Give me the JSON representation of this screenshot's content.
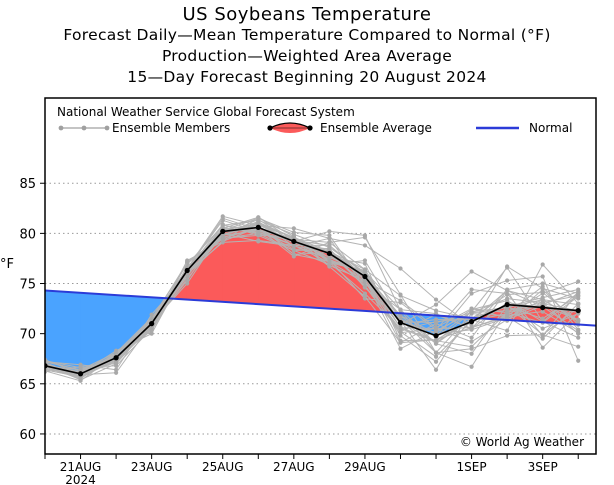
{
  "titles": {
    "line1": "US Soybeans Temperature",
    "line2": "Forecast Daily—Mean Temperature Compared to Normal (°F)",
    "line3": "Production—Weighted Area Average",
    "line4": "15—Day Forecast Beginning 20 August 2024"
  },
  "chart_data": {
    "type": "line",
    "title": "US Soybeans Temperature",
    "subtitle": "Forecast Daily-Mean Temperature Compared to Normal (°F) / Production-Weighted Area Average / 15-Day Forecast Beginning 20 August 2024",
    "ylabel": "°F",
    "xlabel": "",
    "ylim": [
      58,
      93.5
    ],
    "x_range": [
      0,
      15.5
    ],
    "yticks": [
      60,
      65,
      70,
      75,
      80,
      85
    ],
    "xticks": [
      {
        "x": 1,
        "label": "21AUG",
        "sublabel": "2024"
      },
      {
        "x": 3,
        "label": "23AUG"
      },
      {
        "x": 5,
        "label": "25AUG"
      },
      {
        "x": 7,
        "label": "27AUG"
      },
      {
        "x": 9,
        "label": "29AUG"
      },
      {
        "x": 12,
        "label": "1SEP"
      },
      {
        "x": 14,
        "label": "3SEP"
      }
    ],
    "grid": "horizontal dotted",
    "legend_header": "National Weather Service Global Forecast System",
    "legend": {
      "members": "Ensemble Members",
      "average": "Ensemble Average",
      "normal": "Normal"
    },
    "annotation": "© World Ag Weather",
    "x": [
      0,
      1,
      2,
      3,
      4,
      5,
      6,
      7,
      8,
      9,
      10,
      11,
      12,
      13,
      14,
      15
    ],
    "ensemble_average": [
      66.8,
      66.0,
      67.6,
      71.0,
      76.3,
      80.2,
      80.6,
      79.2,
      78.0,
      75.7,
      71.1,
      69.8,
      71.2,
      72.9,
      72.6,
      72.3
    ],
    "normal": {
      "x": [
        0,
        15.5
      ],
      "values": [
        74.3,
        70.8
      ]
    },
    "ensemble_members": [
      [
        66.9,
        66.2,
        67.9,
        71.5,
        76.9,
        80.8,
        81.3,
        79.9,
        78.6,
        76.1,
        70.6,
        70.5,
        69.2,
        71.4,
        72.8,
        71.4
      ],
      [
        66.4,
        65.7,
        67.3,
        70.7,
        75.5,
        79.8,
        81.4,
        79.1,
        78.2,
        75.7,
        69.8,
        67.2,
        71.5,
        71.3,
        74.4,
        70.9
      ],
      [
        66.7,
        65.7,
        67.6,
        70.3,
        76.2,
        80.1,
        80.8,
        77.9,
        77.2,
        75.0,
        72.4,
        72.0,
        70.5,
        73.1,
        72.6,
        72.3
      ],
      [
        66.8,
        66.1,
        67.5,
        71.1,
        76.1,
        79.1,
        79.3,
        78.8,
        77.4,
        73.5,
        73.1,
        70.4,
        74.4,
        74.0,
        69.8,
        74.1
      ],
      [
        67.3,
        66.3,
        67.5,
        71.0,
        76.1,
        79.6,
        80.5,
        77.7,
        79.1,
        79.6,
        73.9,
        68.1,
        68.5,
        69.8,
        69.9,
        72.6
      ],
      [
        66.7,
        66.1,
        67.1,
        71.1,
        75.0,
        80.3,
        81.5,
        80.1,
        79.8,
        74.8,
        70.1,
        70.5,
        70.6,
        71.7,
        69.5,
        73.0
      ],
      [
        67.0,
        65.8,
        68.1,
        70.7,
        76.3,
        80.1,
        80.8,
        79.6,
        76.8,
        75.3,
        73.3,
        70.6,
        72.5,
        72.1,
        72.8,
        72.1
      ],
      [
        66.7,
        65.9,
        67.9,
        71.4,
        76.5,
        81.3,
        80.2,
        79.6,
        77.3,
        76.1,
        71.5,
        69.7,
        74.0,
        75.3,
        75.7,
        67.3
      ],
      [
        67.3,
        66.6,
        66.8,
        70.5,
        77.3,
        79.2,
        80.6,
        79.3,
        78.0,
        75.7,
        69.1,
        71.0,
        69.6,
        74.3,
        73.4,
        71.3
      ],
      [
        66.8,
        66.4,
        67.6,
        70.4,
        76.5,
        80.4,
        80.3,
        78.8,
        77.1,
        74.0,
        70.5,
        69.2,
        72.2,
        76.6,
        71.2,
        74.1
      ],
      [
        66.8,
        66.1,
        67.1,
        71.5,
        77.0,
        79.8,
        81.1,
        79.6,
        78.2,
        76.4,
        73.8,
        72.3,
        71.5,
        72.7,
        73.6,
        74.4
      ],
      [
        66.3,
        65.3,
        67.9,
        71.3,
        76.5,
        81.5,
        80.4,
        79.3,
        78.8,
        75.9,
        71.8,
        69.0,
        68.0,
        72.8,
        69.9,
        68.7
      ],
      [
        66.7,
        65.5,
        67.9,
        70.8,
        76.4,
        80.0,
        79.2,
        78.7,
        79.5,
        74.6,
        71.3,
        66.4,
        72.5,
        71.6,
        73.4,
        72.9
      ],
      [
        66.4,
        65.7,
        68.1,
        71.6,
        76.3,
        80.9,
        79.8,
        79.7,
        77.2,
        76.3,
        71.0,
        71.4,
        71.4,
        70.3,
        76.9,
        73.0
      ],
      [
        66.8,
        65.8,
        67.8,
        71.2,
        75.9,
        79.2,
        81.6,
        79.3,
        76.7,
        73.7,
        69.1,
        69.4,
        71.3,
        74.3,
        72.7,
        70.3
      ],
      [
        67.1,
        65.8,
        67.3,
        71.4,
        76.4,
        80.5,
        80.1,
        79.2,
        77.6,
        77.0,
        69.3,
        69.4,
        70.6,
        71.8,
        72.2,
        70.1
      ],
      [
        66.8,
        65.7,
        68.0,
        71.0,
        75.8,
        79.9,
        80.9,
        79.2,
        80.2,
        79.8,
        72.3,
        68.1,
        66.7,
        72.3,
        72.9,
        74.2
      ],
      [
        67.2,
        66.4,
        68.1,
        71.0,
        75.3,
        80.6,
        80.0,
        79.4,
        79.1,
        76.4,
        70.9,
        72.9,
        76.2,
        74.3,
        68.6,
        72.1
      ],
      [
        67.1,
        65.7,
        67.4,
        71.4,
        77.1,
        79.6,
        80.4,
        78.4,
        78.5,
        74.6,
        71.4,
        68.1,
        72.0,
        71.8,
        74.0,
        75.2
      ],
      [
        67.2,
        66.4,
        67.2,
        70.6,
        76.3,
        79.8,
        80.3,
        79.5,
        77.4,
        76.1,
        71.2,
        71.1,
        72.1,
        73.5,
        73.1,
        73.8
      ],
      [
        66.5,
        65.9,
        67.4,
        70.5,
        76.7,
        79.8,
        80.9,
        79.0,
        78.4,
        75.4,
        68.5,
        70.3,
        72.1,
        72.3,
        73.1,
        70.0
      ],
      [
        66.7,
        65.6,
        67.9,
        71.3,
        76.3,
        80.1,
        80.8,
        77.9,
        78.1,
        75.6,
        70.6,
        69.3,
        68.7,
        72.1,
        71.1,
        73.7
      ],
      [
        66.6,
        66.2,
        67.2,
        70.6,
        77.1,
        79.8,
        81.2,
        78.7,
        78.3,
        75.8,
        71.8,
        70.0,
        70.4,
        71.6,
        73.0,
        72.3
      ],
      [
        67.0,
        66.0,
        67.8,
        71.2,
        76.6,
        80.3,
        81.0,
        79.6,
        77.9,
        75.1,
        70.4,
        71.2,
        71.5,
        73.9,
        74.1,
        71.3
      ],
      [
        66.9,
        65.4,
        67.0,
        70.9,
        75.7,
        80.4,
        80.1,
        78.8,
        78.8,
        75.6,
        71.2,
        69.1,
        71.5,
        72.8,
        70.5,
        72.0
      ],
      [
        67.4,
        66.0,
        68.3,
        70.0,
        76.5,
        81.7,
        80.8,
        80.5,
        79.5,
        78.8,
        76.5,
        73.4,
        70.8,
        76.7,
        74.5,
        73.5
      ],
      [
        66.2,
        66.7,
        67.2,
        71.5,
        76.4,
        79.5,
        79.8,
        78.3,
        76.9,
        77.3,
        71.4,
        69.7,
        72.2,
        72.6,
        73.4,
        71.2
      ],
      [
        66.8,
        66.1,
        68.0,
        71.1,
        76.5,
        80.4,
        80.9,
        79.6,
        77.6,
        76.1,
        71.1,
        70.1,
        72.4,
        73.3,
        71.2,
        69.6
      ],
      [
        67.2,
        66.9,
        66.4,
        71.9,
        75.9,
        80.8,
        80.3,
        79.4,
        78.1,
        74.7,
        70.2,
        67.7,
        71.3,
        72.0,
        74.7,
        70.4
      ],
      [
        67.1,
        65.7,
        68.0,
        70.4,
        77.2,
        79.5,
        80.0,
        78.3,
        78.3,
        75.3,
        70.2,
        71.9,
        70.5,
        74.4,
        75.0,
        74.0
      ],
      [
        66.8,
        65.9,
        66.1,
        71.0,
        76.3,
        80.5,
        81.6,
        79.7,
        77.1,
        76.2,
        72.4,
        69.0,
        71.5,
        72.7,
        71.5,
        73.8
      ]
    ]
  }
}
